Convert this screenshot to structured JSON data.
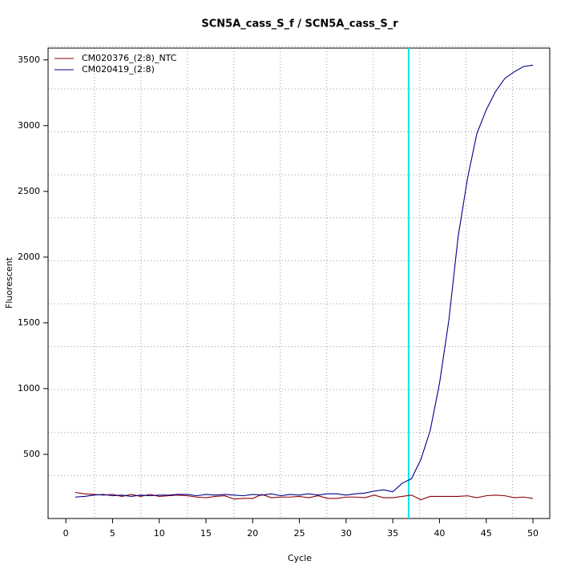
{
  "chart_data": {
    "type": "line",
    "title": "SCN5A_cass_S_f / SCN5A_cass_S_r",
    "x_label": "Cycle",
    "y_label": "Fluorescent",
    "x": [
      1,
      2,
      3,
      4,
      5,
      6,
      7,
      8,
      9,
      10,
      11,
      12,
      13,
      14,
      15,
      16,
      17,
      18,
      19,
      20,
      21,
      22,
      23,
      24,
      25,
      26,
      27,
      28,
      29,
      30,
      31,
      32,
      33,
      34,
      35,
      36,
      37,
      38,
      39,
      40,
      41,
      42,
      43,
      44,
      45,
      46,
      47,
      48,
      49,
      50
    ],
    "series": [
      {
        "name": "CM020376_(2:8)_NTC",
        "color": "#8b0000",
        "values": [
          210,
          200,
          195,
          190,
          195,
          180,
          195,
          180,
          195,
          180,
          185,
          190,
          185,
          175,
          170,
          180,
          185,
          160,
          165,
          165,
          195,
          170,
          175,
          175,
          180,
          170,
          185,
          165,
          165,
          175,
          175,
          170,
          190,
          170,
          170,
          180,
          190,
          155,
          180,
          180,
          180,
          180,
          185,
          170,
          185,
          190,
          185,
          170,
          175,
          165
        ]
      },
      {
        "name": "CM020419_(2:8)",
        "color": "#00008b",
        "values": [
          175,
          180,
          190,
          195,
          185,
          190,
          180,
          190,
          185,
          190,
          190,
          195,
          195,
          185,
          195,
          190,
          195,
          190,
          185,
          195,
          190,
          200,
          185,
          195,
          190,
          200,
          190,
          200,
          200,
          190,
          200,
          205,
          220,
          230,
          215,
          280,
          315,
          460,
          680,
          1040,
          1520,
          2160,
          2600,
          2940,
          3120,
          3260,
          3360,
          3410,
          3450,
          3460
        ]
      }
    ],
    "xlim": [
      -1.9,
      51.8
    ],
    "ylim": [
      12,
      3590
    ],
    "xticks": [
      0,
      5,
      10,
      15,
      20,
      25,
      30,
      35,
      40,
      45,
      50
    ],
    "yticks": [
      500,
      1000,
      1500,
      2000,
      2500,
      3000,
      3500
    ],
    "grid": true,
    "legend": "top-left",
    "threshold": {
      "x": 36.7,
      "color": "#00e5ee"
    }
  }
}
